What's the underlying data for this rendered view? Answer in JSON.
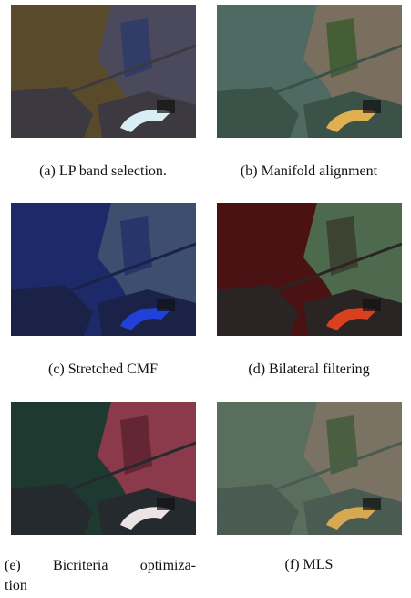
{
  "figure": {
    "panels": [
      {
        "caption": "(a) LP band selection."
      },
      {
        "caption": "(b) Manifold alignment"
      },
      {
        "caption": "(c) Stretched CMF"
      },
      {
        "caption": "(d) Bilateral filtering"
      },
      {
        "caption_lines": [
          "(e) Bicriteria optimiza-",
          "tion"
        ]
      },
      {
        "caption": "(f) MLS"
      }
    ]
  }
}
